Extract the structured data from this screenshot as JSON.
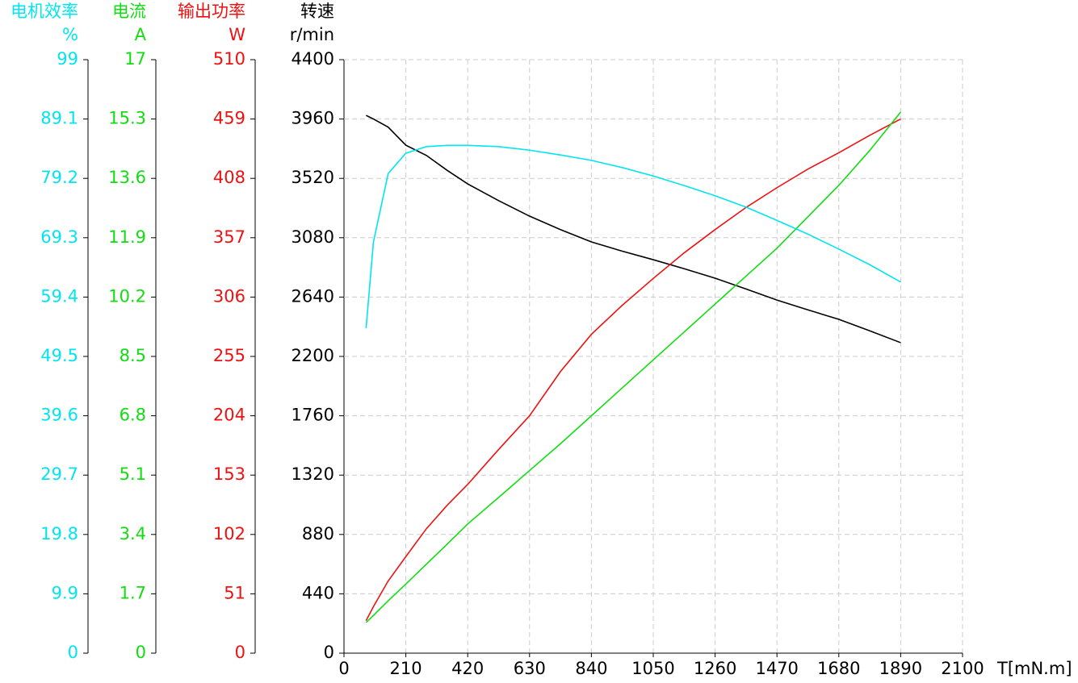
{
  "chart_data": {
    "type": "line",
    "x_label": "T[mN.m]",
    "xlim": [
      0,
      2100
    ],
    "xticks": [
      0,
      210,
      420,
      630,
      840,
      1050,
      1260,
      1470,
      1680,
      1890,
      2100
    ],
    "grid": true,
    "axes": {
      "y": {
        "title": "转速",
        "unit": "r/min",
        "color": "#000000",
        "lim": [
          0,
          4400
        ],
        "ticks": [
          0,
          440,
          880,
          1320,
          1760,
          2200,
          2640,
          3080,
          3520,
          3960,
          4400
        ]
      },
      "y2": {
        "title": "输出功率",
        "unit": "W",
        "color": "#ee1111",
        "lim": [
          0,
          510
        ],
        "ticks": [
          0,
          51,
          102,
          153,
          204,
          255,
          306,
          357,
          408,
          459,
          510
        ]
      },
      "y3": {
        "title": "电流",
        "unit": "A",
        "color": "#11dd11",
        "lim": [
          0,
          17
        ],
        "ticks": [
          0,
          1.7,
          3.4,
          5.1,
          6.8,
          8.5,
          10.2,
          11.9,
          13.6,
          15.3,
          17
        ]
      },
      "y4": {
        "title": "电机效率",
        "unit": "%",
        "color": "#00e5f0",
        "lim": [
          0,
          99
        ],
        "ticks": [
          0,
          9.9,
          19.8,
          29.7,
          39.6,
          49.5,
          59.4,
          69.3,
          79.2,
          89.1,
          99
        ]
      }
    },
    "x": [
      75,
      100,
      150,
      210,
      280,
      350,
      420,
      525,
      630,
      735,
      840,
      945,
      1050,
      1155,
      1260,
      1365,
      1470,
      1575,
      1680,
      1785,
      1890
    ],
    "series": [
      {
        "axis": "y",
        "color": "#000000",
        "values": [
          3987,
          3960,
          3900,
          3766,
          3690,
          3580,
          3479,
          3355,
          3240,
          3140,
          3049,
          2980,
          2917,
          2850,
          2780,
          2700,
          2618,
          2545,
          2475,
          2390,
          2302
        ]
      },
      {
        "axis": "y2",
        "color": "#ee1111",
        "values": [
          28,
          40,
          62,
          83,
          107,
          127,
          145,
          175,
          204,
          242,
          274,
          299,
          322,
          344,
          364,
          383,
          400,
          416,
          430,
          445,
          459
        ]
      },
      {
        "axis": "y3",
        "color": "#11dd11",
        "values": [
          0.88,
          1.08,
          1.5,
          1.98,
          2.55,
          3.12,
          3.7,
          4.46,
          5.23,
          6.0,
          6.8,
          7.6,
          8.4,
          9.2,
          10.0,
          10.8,
          11.6,
          12.5,
          13.4,
          14.4,
          15.5
        ]
      },
      {
        "axis": "y4",
        "color": "#00e5f0",
        "values": [
          54.2,
          68.6,
          80,
          83.4,
          84.5,
          84.7,
          84.7,
          84.5,
          83.9,
          83.1,
          82.2,
          81,
          79.6,
          78,
          76.3,
          74.4,
          72.2,
          69.9,
          67.4,
          64.8,
          61.9
        ]
      }
    ]
  }
}
